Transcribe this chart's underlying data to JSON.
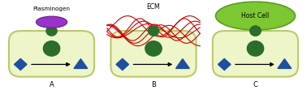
{
  "panels": [
    "A",
    "B",
    "C"
  ],
  "cell_color": "#eef5c8",
  "cell_edge_color": "#b8ca6a",
  "receptor_color": "#2a6e2a",
  "plasminogen_color": "#9933cc",
  "plasminogen_edge": "#6a1a8a",
  "ecm_color": "#cc0000",
  "host_cell_color": "#7dc832",
  "host_cell_edge_color": "#5a9e20",
  "diamond_color": "#1e4fa0",
  "triangle_color": "#1e4fa0",
  "inner_circle_color": "#2a6e2a",
  "arrow_color": "#000000",
  "label_color": "#000000",
  "text_color": "#000000",
  "bg_color": "#ffffff",
  "label_A": "A",
  "label_B": "B",
  "label_C": "C",
  "text_plasminogen": "Plasminogen",
  "text_ecm": "ECM",
  "text_host_cell": "Host Cell"
}
